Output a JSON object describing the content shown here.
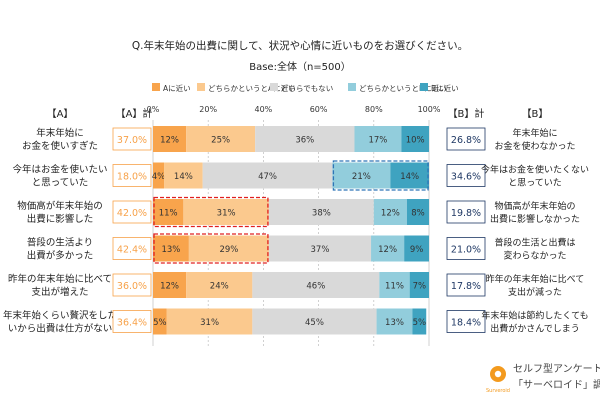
{
  "chart_data": {
    "type": "bar",
    "stacked": true,
    "orientation": "horizontal",
    "title": "Q.年末年始の出費に関して、状況や心情に近いものをお選びください。",
    "subtitle": "Base:全体（n=500）",
    "xlim": [
      0,
      100
    ],
    "x_ticks": [
      "0%",
      "20%",
      "40%",
      "60%",
      "80%",
      "100%"
    ],
    "legend_position": "top",
    "header_a": "【A】",
    "header_a_total": "【A】計",
    "header_b_total": "【B】計",
    "header_b": "【B】",
    "colors": {
      "a_near": "#F8A44C",
      "somewhat_a": "#FBC98E",
      "neither": "#D9D9D9",
      "somewhat_b": "#92CDDC",
      "b_near": "#3FA3C0",
      "a_total_text": "#F7A24A",
      "b_total_text": "#1F3864",
      "highlight_a": "#E02020",
      "highlight_b": "#2E75B6"
    },
    "series": [
      {
        "name": "Aに近い",
        "values": [
          12,
          4,
          11,
          13,
          12,
          5
        ]
      },
      {
        "name": "どちらかというとAに近い",
        "values": [
          25,
          14,
          31,
          29,
          24,
          31
        ]
      },
      {
        "name": "どちらでもない",
        "values": [
          36,
          47,
          38,
          37,
          46,
          45
        ]
      },
      {
        "name": "どちらかというとBに近い",
        "values": [
          17,
          21,
          12,
          12,
          11,
          13
        ]
      },
      {
        "name": "Bに近い",
        "values": [
          10,
          14,
          8,
          9,
          7,
          5
        ]
      }
    ],
    "rows": [
      {
        "a": [
          "年末年始に",
          "お金を使いすぎた"
        ],
        "a_total": "37.0%",
        "b_total": "26.8%",
        "b": [
          "年末年始に",
          "お金を使わなかった"
        ],
        "highlight": ""
      },
      {
        "a": [
          "今年はお金を使いたい",
          "と思っていた"
        ],
        "a_total": "18.0%",
        "b_total": "34.6%",
        "b": [
          "今年はお金を使いたくない",
          "と思っていた"
        ],
        "highlight": "b"
      },
      {
        "a": [
          "物価高が年末年始の",
          "出費に影響した"
        ],
        "a_total": "42.0%",
        "b_total": "19.8%",
        "b": [
          "物価高が年末年始の",
          "出費に影響しなかった"
        ],
        "highlight": "a"
      },
      {
        "a": [
          "普段の生活より",
          "出費が多かった"
        ],
        "a_total": "42.4%",
        "b_total": "21.0%",
        "b": [
          "普段の生活と出費は",
          "変わらなかった"
        ],
        "highlight": "a"
      },
      {
        "a": [
          "昨年の年末年始に比べて",
          "支出が増えた"
        ],
        "a_total": "36.0%",
        "b_total": "17.8%",
        "b": [
          "昨年の年末年始に比べて",
          "支出が減った"
        ],
        "highlight": ""
      },
      {
        "a": [
          "年末年始くらい贅沢をした",
          "いから出費は仕方がない"
        ],
        "a_total": "36.4%",
        "b_total": "18.4%",
        "b": [
          "年末年始は節約したくても",
          "出費がかさんでしまう"
        ],
        "highlight": ""
      }
    ]
  },
  "source": {
    "logo_text": "Surveroid",
    "line1": "セルフ型アンケートツール",
    "line2": "「サーベロイド」調べ"
  }
}
